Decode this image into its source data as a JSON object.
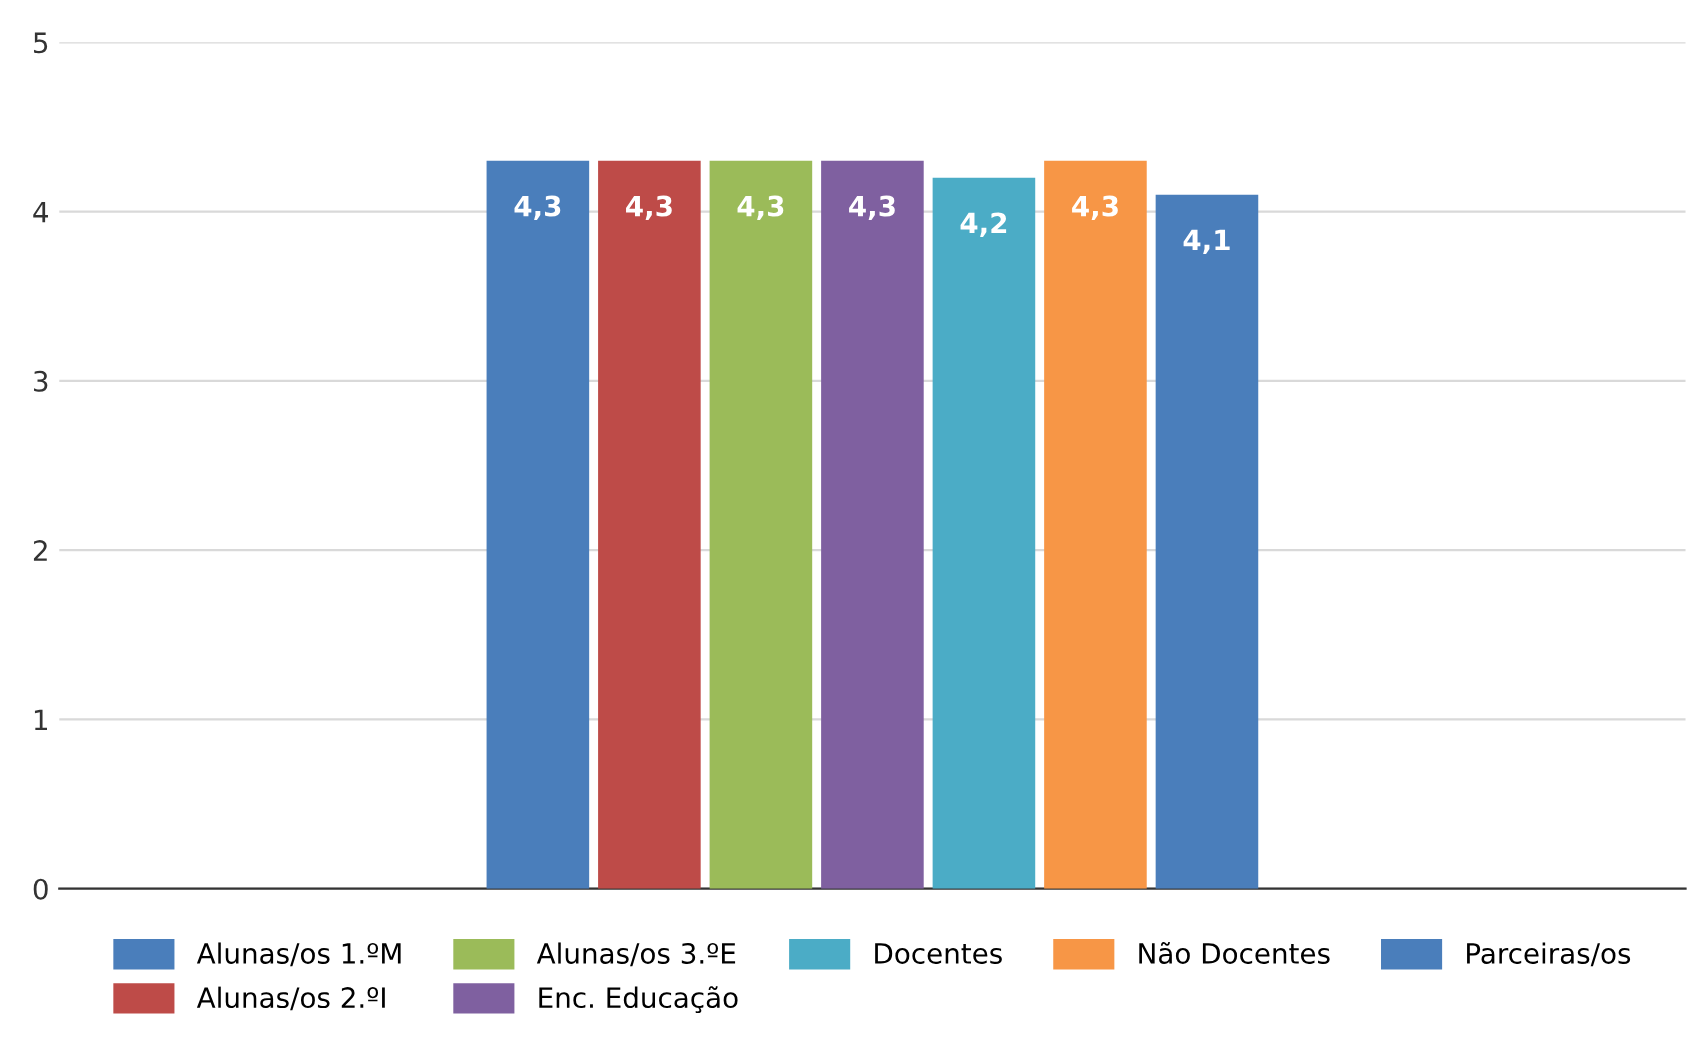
{
  "chart_data": {
    "type": "bar",
    "categories": [
      null
    ],
    "series": [
      {
        "name": "Alunas/os 1.ºM",
        "color": "#4a7ebb",
        "values": [
          4.3
        ],
        "value_labels": [
          "4,3"
        ]
      },
      {
        "name": "Alunas/os 2.ºI",
        "color": "#be4b48",
        "values": [
          4.3
        ],
        "value_labels": [
          "4,3"
        ]
      },
      {
        "name": "Alunas/os 3.ºE",
        "color": "#9bbb59",
        "values": [
          4.3
        ],
        "value_labels": [
          "4,3"
        ]
      },
      {
        "name": "Enc. Educação",
        "color": "#7f60a0",
        "values": [
          4.3
        ],
        "value_labels": [
          "4,3"
        ]
      },
      {
        "name": "Docentes",
        "color": "#4bacc6",
        "values": [
          4.2
        ],
        "value_labels": [
          "4,2"
        ]
      },
      {
        "name": "Não Docentes",
        "color": "#f79646",
        "values": [
          4.3
        ],
        "value_labels": [
          "4,3"
        ]
      },
      {
        "name": "Parceiras/os",
        "color": "#4a7ebb",
        "values": [
          4.1
        ],
        "value_labels": [
          "4,1"
        ]
      }
    ],
    "ylim": [
      0,
      5
    ],
    "yticks": [
      0,
      1,
      2,
      3,
      4,
      5
    ],
    "grid": "y",
    "legend": "bottom"
  }
}
